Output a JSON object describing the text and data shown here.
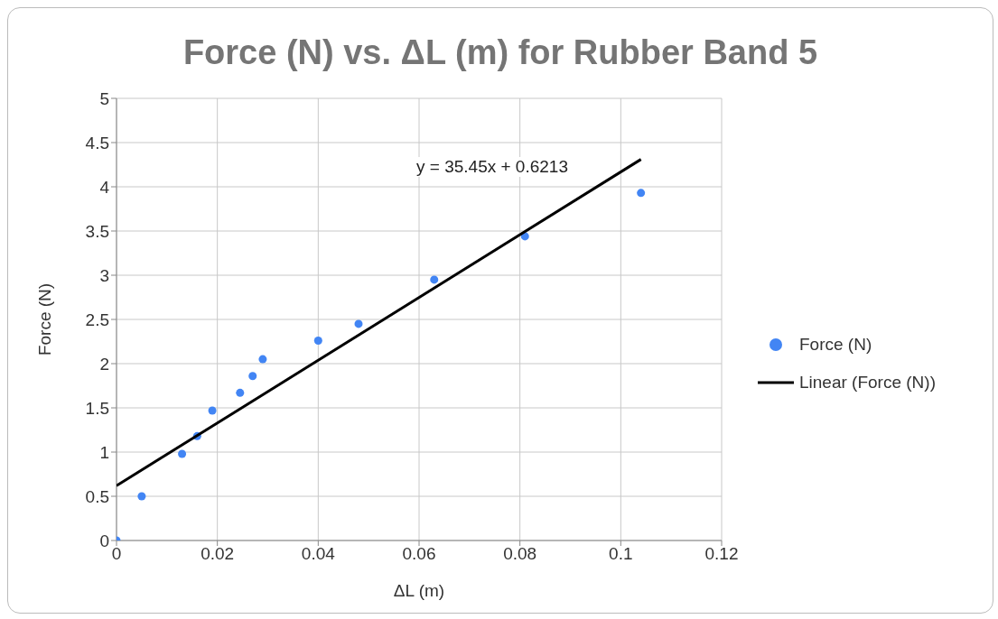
{
  "chart_data": {
    "type": "scatter",
    "title": "Force (N) vs. ΔL (m) for Rubber Band 5",
    "xlabel": "ΔL (m)",
    "ylabel": "Force (N)",
    "series": [
      {
        "name": "Force (N)",
        "marker": "circle",
        "color": "#4285f4",
        "x": [
          0,
          0.005,
          0.013,
          0.016,
          0.019,
          0.0245,
          0.027,
          0.029,
          0.04,
          0.048,
          0.063,
          0.081,
          0.104
        ],
        "values": [
          0,
          0.5,
          0.98,
          1.18,
          1.47,
          1.67,
          1.86,
          2.05,
          2.26,
          2.45,
          2.95,
          3.44,
          3.93
        ]
      },
      {
        "name": "Linear (Force (N))",
        "type": "line",
        "marker": "none",
        "color": "#000000",
        "x": [
          0,
          0.104
        ],
        "values": [
          0.62,
          4.31
        ]
      }
    ],
    "annotations": [
      "y = 35.45x + 0.6213"
    ],
    "xlim": [
      0,
      0.12
    ],
    "xticks": [
      0,
      0.02,
      0.04,
      0.06,
      0.08,
      0.1,
      0.12
    ],
    "ylim": [
      0,
      5
    ],
    "yticks": [
      0,
      0.5,
      1,
      1.5,
      2,
      2.5,
      3,
      3.5,
      4,
      4.5,
      5
    ],
    "grid": true,
    "legend": "right"
  }
}
